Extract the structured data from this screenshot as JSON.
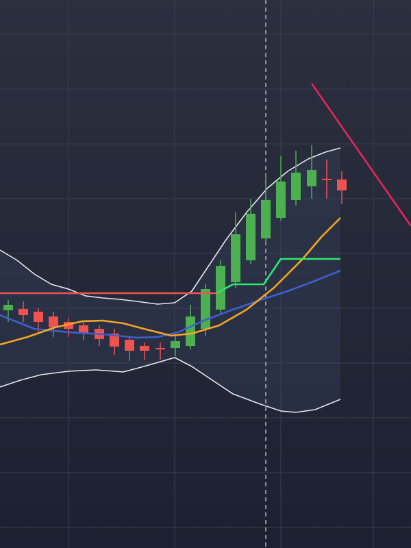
{
  "chart_data": {
    "type": "candlestick",
    "xlim": [
      0,
      600
    ],
    "ylim": [
      0,
      800
    ],
    "xticks": [
      100,
      255,
      410,
      545
    ],
    "yticks": [
      30,
      110,
      190,
      270,
      350,
      430,
      510,
      590,
      670,
      750
    ],
    "grid": true,
    "up_color": "#4caf50",
    "down_color": "#ef5350",
    "band_fill": "#3a4460",
    "crosshair_x": 388,
    "candles": {
      "x": [
        12,
        34,
        56,
        78,
        100,
        122,
        145,
        167,
        189,
        211,
        234,
        256,
        278,
        300,
        322,
        344,
        366,
        388,
        410,
        432,
        455,
        477,
        499
      ],
      "open": [
        347,
        349,
        345,
        338,
        330,
        325,
        320,
        313,
        304,
        295,
        292,
        292,
        295,
        320,
        348,
        388,
        420,
        452,
        482,
        508,
        528,
        539,
        538
      ],
      "high": [
        362,
        360,
        350,
        345,
        335,
        330,
        325,
        320,
        310,
        300,
        300,
        310,
        355,
        385,
        420,
        490,
        510,
        545,
        572,
        580,
        588,
        567,
        550
      ],
      "low": [
        330,
        330,
        315,
        308,
        308,
        303,
        295,
        282,
        273,
        275,
        275,
        280,
        290,
        310,
        342,
        380,
        415,
        445,
        478,
        500,
        510,
        510,
        502
      ],
      "close": [
        355,
        340,
        330,
        322,
        320,
        313,
        305,
        294,
        288,
        288,
        290,
        302,
        338,
        378,
        412,
        458,
        488,
        508,
        535,
        548,
        552,
        537,
        522
      ]
    },
    "band": {
      "upper": {
        "color": "#e8e8ee",
        "x": [
          0,
          25,
          50,
          75,
          100,
          125,
          150,
          175,
          200,
          230,
          255,
          280,
          300,
          330,
          360,
          390,
          420,
          450,
          475,
          497
        ],
        "values": [
          435,
          420,
          400,
          385,
          378,
          368,
          365,
          363,
          360,
          356,
          358,
          375,
          405,
          450,
          490,
          525,
          550,
          568,
          578,
          584
        ]
      },
      "lower": {
        "color": "#e8e8ee",
        "x": [
          0,
          30,
          60,
          100,
          140,
          180,
          210,
          255,
          280,
          310,
          340,
          380,
          410,
          432,
          460,
          497
        ],
        "values": [
          235,
          245,
          253,
          258,
          260,
          257,
          265,
          278,
          265,
          245,
          225,
          210,
          200,
          198,
          202,
          217
        ]
      }
    },
    "series": [
      {
        "color": "#3f5fcf",
        "x": [
          0,
          50,
          100,
          150,
          200,
          230,
          260,
          300,
          340,
          380,
          420,
          460,
          497
        ],
        "values": [
          340,
          320,
          315,
          312,
          307,
          308,
          315,
          333,
          348,
          362,
          375,
          390,
          405
        ]
      },
      {
        "color": "#f5a623",
        "x": [
          0,
          40,
          80,
          120,
          150,
          180,
          210,
          250,
          280,
          320,
          360,
          400,
          440,
          470,
          497
        ],
        "values": [
          297,
          308,
          322,
          331,
          332,
          328,
          320,
          310,
          313,
          325,
          348,
          380,
          420,
          455,
          482
        ]
      },
      {
        "color": "#ef5350",
        "x": [
          0,
          316
        ],
        "values": [
          372,
          372
        ]
      },
      {
        "color": "#2ee86e",
        "x": [
          316,
          340,
          385,
          410,
          497
        ],
        "values": [
          372,
          385,
          385,
          422,
          422
        ]
      },
      {
        "color": "#e8245e",
        "x": [
          455,
          600
        ],
        "values": [
          678,
          470
        ]
      }
    ]
  }
}
